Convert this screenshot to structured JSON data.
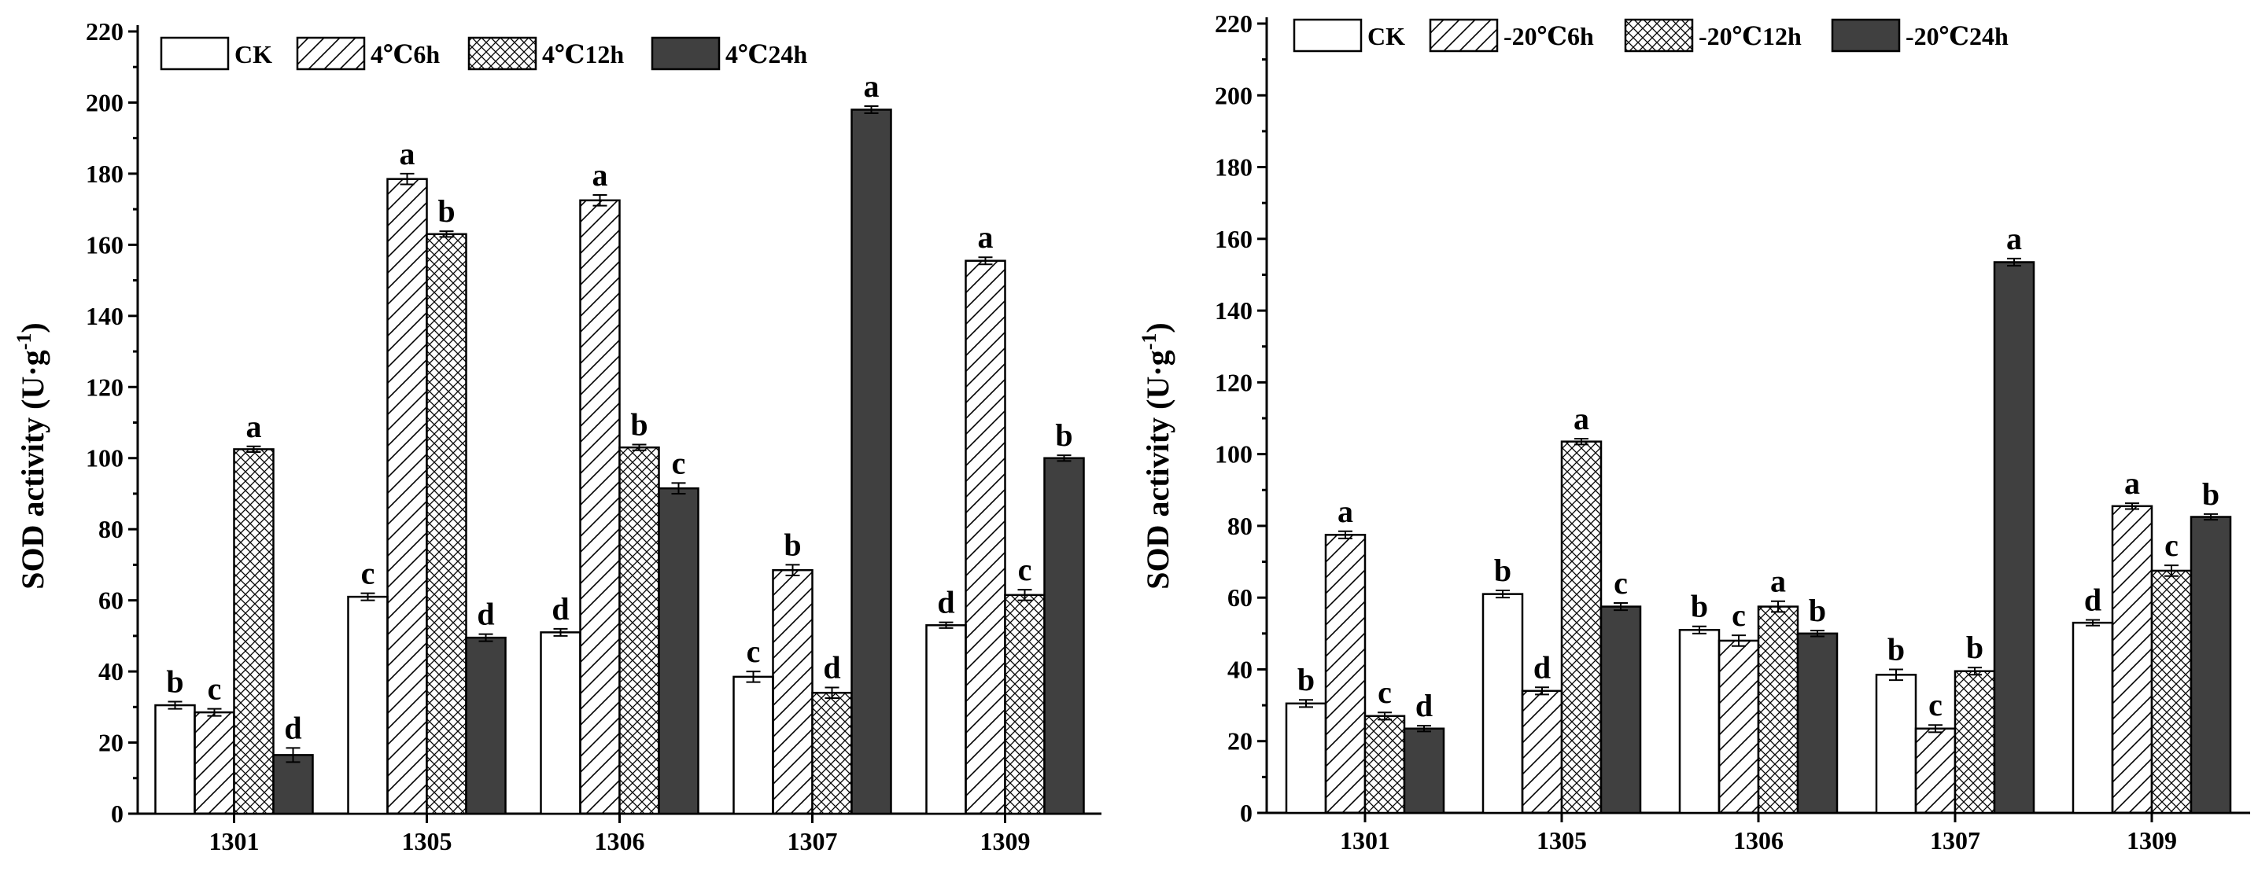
{
  "colors": {
    "axis": "#000000",
    "solid_fill": "#404040",
    "background": "#ffffff"
  },
  "chart_data": [
    {
      "id": "chart-4c",
      "type": "bar",
      "ylabel": "SOD activity (U·g",
      "ylabel_sup": "-1",
      "ylabel_close": ")",
      "ylim": [
        0,
        220
      ],
      "yticks": [
        0,
        20,
        40,
        60,
        80,
        100,
        120,
        140,
        160,
        180,
        200,
        220
      ],
      "categories": [
        "1301",
        "1305",
        "1306",
        "1307",
        "1309"
      ],
      "series": [
        {
          "name": "CK",
          "pattern": "white",
          "values": [
            30.5,
            61,
            51,
            38.5,
            53
          ],
          "errors": [
            1,
            1,
            1,
            1.5,
            0.8
          ],
          "letters": [
            "b",
            "c",
            "d",
            "c",
            "d"
          ]
        },
        {
          "name": "4℃6h",
          "pattern": "hatch",
          "values": [
            28.5,
            178.5,
            172.5,
            68.5,
            155.5
          ],
          "errors": [
            1,
            1.5,
            1.5,
            1.5,
            1
          ],
          "letters": [
            "c",
            "a",
            "a",
            "b",
            "a"
          ]
        },
        {
          "name": "4℃12h",
          "pattern": "cross",
          "values": [
            102.5,
            163,
            103,
            34,
            61.5
          ],
          "errors": [
            0.8,
            0.8,
            0.8,
            1.5,
            1.5
          ],
          "letters": [
            "a",
            "b",
            "b",
            "d",
            "c"
          ]
        },
        {
          "name": "4℃24h",
          "pattern": "solid",
          "values": [
            16.5,
            49.5,
            91.5,
            198,
            100
          ],
          "errors": [
            2,
            1,
            1.5,
            1,
            0.8
          ],
          "letters": [
            "d",
            "d",
            "c",
            "a",
            "b"
          ]
        }
      ]
    },
    {
      "id": "chart-minus20c",
      "type": "bar",
      "ylabel": "SOD activity (U·g",
      "ylabel_sup": "-1",
      "ylabel_close": ")",
      "ylim": [
        0,
        220
      ],
      "yticks": [
        0,
        20,
        40,
        60,
        80,
        100,
        120,
        140,
        160,
        180,
        200,
        220
      ],
      "categories": [
        "1301",
        "1305",
        "1306",
        "1307",
        "1309"
      ],
      "series": [
        {
          "name": "CK",
          "pattern": "white",
          "values": [
            30.5,
            61,
            51,
            38.5,
            53
          ],
          "errors": [
            1,
            1,
            1,
            1.5,
            0.8
          ],
          "letters": [
            "b",
            "b",
            "b",
            "b",
            "d"
          ]
        },
        {
          "name": "-20℃6h",
          "pattern": "hatch",
          "values": [
            77.5,
            34,
            48,
            23.5,
            85.5
          ],
          "errors": [
            1,
            1,
            1.5,
            1,
            0.8
          ],
          "letters": [
            "a",
            "d",
            "c",
            "c",
            "a"
          ]
        },
        {
          "name": "-20℃12h",
          "pattern": "cross",
          "values": [
            27,
            103.5,
            57.5,
            39.5,
            67.5
          ],
          "errors": [
            1,
            0.8,
            1.5,
            1,
            1.5
          ],
          "letters": [
            "c",
            "a",
            "a",
            "b",
            "c"
          ]
        },
        {
          "name": "-20℃24h",
          "pattern": "solid",
          "values": [
            23.5,
            57.5,
            50,
            153.5,
            82.5
          ],
          "errors": [
            0.8,
            1,
            0.8,
            1,
            0.8
          ],
          "letters": [
            "d",
            "c",
            "b",
            "a",
            "b"
          ]
        }
      ]
    }
  ]
}
